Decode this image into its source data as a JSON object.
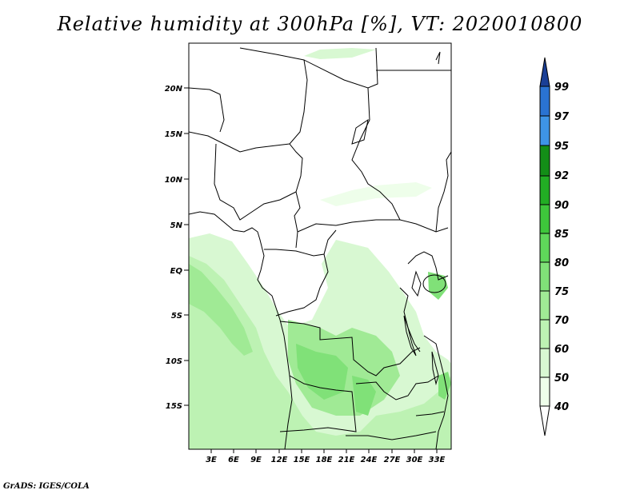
{
  "title": "Relative humidity at 300hPa [%], VT: 2020010800",
  "credit": "GrADS: IGES/COLA",
  "lat_labels": [
    "20N",
    "15N",
    "10N",
    "5N",
    "EQ",
    "5S",
    "10S",
    "15S"
  ],
  "lon_labels": [
    "3E",
    "6E",
    "9E",
    "12E",
    "15E",
    "18E",
    "21E",
    "24E",
    "27E",
    "30E",
    "33E"
  ],
  "colorbar": {
    "labels": [
      "40",
      "50",
      "60",
      "70",
      "75",
      "80",
      "85",
      "90",
      "92",
      "95",
      "97",
      "99"
    ],
    "colors": [
      "#ffffff",
      "#eefeea",
      "#d8f8d2",
      "#bdf2b3",
      "#a0ea95",
      "#80e178",
      "#5fd75a",
      "#3ec63b",
      "#22ad24",
      "#138e17",
      "#3e94e6",
      "#2a73d2",
      "#1f56b6",
      "#1a3f96"
    ]
  },
  "chart_data": {
    "type": "map",
    "variable": "Relative humidity at 300hPa",
    "units": "%",
    "valid_time": "2020010800",
    "lon_range": [
      0,
      34.5
    ],
    "lat_range": [
      -20,
      24.5
    ],
    "contour_levels": [
      40,
      50,
      60,
      70,
      75,
      80,
      85,
      90,
      92,
      95,
      97,
      99
    ]
  }
}
